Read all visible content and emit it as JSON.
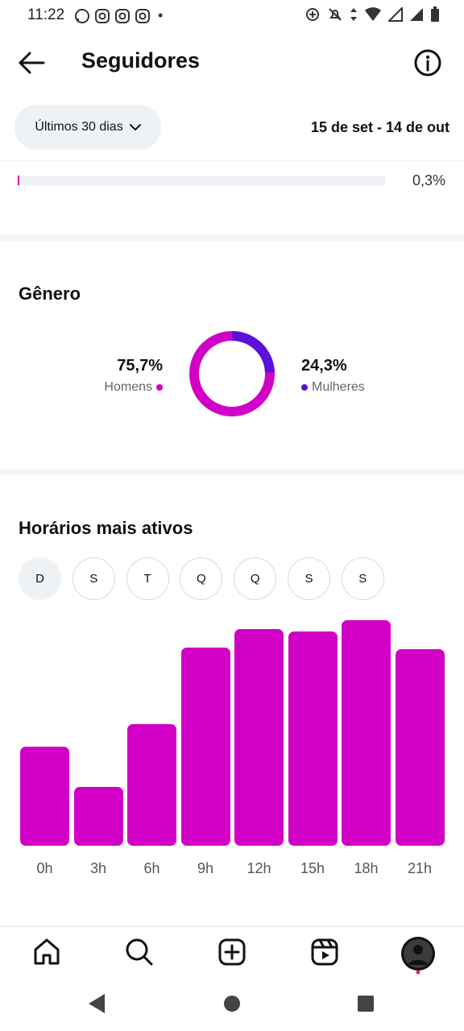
{
  "status_bar": {
    "time": "11:22",
    "dot": "•"
  },
  "header": {
    "title": "Seguidores"
  },
  "filter": {
    "period_label": "Últimos 30 dias",
    "date_range": "15 de set - 14 de out"
  },
  "top_row": {
    "percent": "0,3%",
    "fill_fraction": 0.003
  },
  "gender": {
    "title": "Gênero",
    "men": {
      "value": "75,7%",
      "label": "Homens"
    },
    "women": {
      "value": "24,3%",
      "label": "Mulheres"
    }
  },
  "active_hours": {
    "title": "Horários mais ativos",
    "days": [
      "D",
      "S",
      "T",
      "Q",
      "Q",
      "S",
      "S"
    ],
    "selected_day_index": 0
  },
  "chart_data": {
    "type": "bar",
    "categories": [
      "0h",
      "3h",
      "6h",
      "9h",
      "12h",
      "15h",
      "18h",
      "21h"
    ],
    "values": [
      0.44,
      0.26,
      0.54,
      0.88,
      0.96,
      0.95,
      1.0,
      0.87
    ],
    "ylim": [
      0,
      1
    ],
    "grid": false,
    "colors": {
      "bar": "#d200c6"
    }
  },
  "colors": {
    "accent_magenta": "#d200c6",
    "accent_purple": "#5a12d9"
  }
}
